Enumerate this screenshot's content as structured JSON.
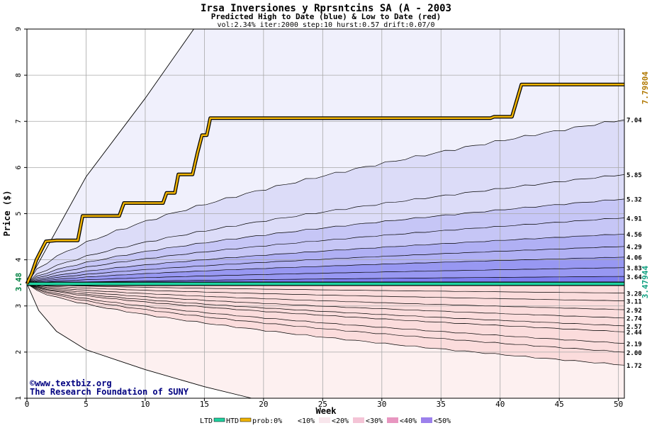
{
  "header": {
    "title": "Irsa Inversiones y Rprsntcins SA (A - 2003",
    "subtitle": "Predicted High to Date (blue) &  Low to Date (red)",
    "params": "vol:2.34% iter:2000 step:10 hurst:0.57 drift:0.07/0"
  },
  "watermark": {
    "line1": "©www.textbiz.org",
    "line2": "The Research Foundation of SUNY"
  },
  "legend": {
    "ltd": "LTD",
    "htd": "HTD",
    "prob": "prob:0%",
    "b10": "<10%",
    "b20": "<20%",
    "b30": "<30%",
    "b40": "<40%",
    "b50": "<50%"
  },
  "colors": {
    "ltd": "#1fd2a0",
    "htd": "#f0b400",
    "blue_bands": [
      "#f0f0fc",
      "#dcdcf8",
      "#c6c6f6",
      "#b0b0f4",
      "#9898f2",
      "#7e7ef0"
    ],
    "red_bands": [
      "#fdf0f0",
      "#fbdcdc",
      "#f9c6c6",
      "#f7aeae",
      "#f59696",
      "#f37e7e"
    ],
    "right_label_high": "#b07800",
    "right_label_low": "#10a080",
    "start_label": "#008040"
  },
  "chart_data": {
    "type": "area",
    "title": "Irsa Inversiones y Rprsntcins SA (A - 2003",
    "xlabel": "Week",
    "ylabel": "Price ($)",
    "xlim": [
      0,
      50.5
    ],
    "ylim": [
      1,
      9
    ],
    "x_ticks": [
      0,
      5,
      10,
      15,
      20,
      25,
      30,
      35,
      40,
      45,
      50
    ],
    "y_ticks": [
      1,
      2,
      3,
      4,
      5,
      6,
      7,
      8,
      9
    ],
    "grid": true,
    "start_price": 3.48,
    "start_label": "3.48",
    "htd_label": "7.79804",
    "ltd_label": "3.47944",
    "ltd_value": 3.479,
    "band_end_labels": [
      "7.04",
      "5.85",
      "5.32",
      "4.91",
      "4.56",
      "4.29",
      "4.06",
      "3.83",
      "3.64",
      "3.28",
      "3.11",
      "2.92",
      "2.74",
      "2.57",
      "2.44",
      "2.19",
      "2.00",
      "1.72"
    ],
    "upper_quantiles": [
      {
        "end": 7.04,
        "label": "7.04"
      },
      {
        "end": 5.85,
        "label": "5.85"
      },
      {
        "end": 5.32,
        "label": "5.32"
      },
      {
        "end": 4.91,
        "label": "4.91"
      },
      {
        "end": 4.56,
        "label": "4.56"
      },
      {
        "end": 4.29,
        "label": "4.29"
      },
      {
        "end": 4.06,
        "label": "4.06"
      },
      {
        "end": 3.83,
        "label": "3.83"
      },
      {
        "end": 3.64,
        "label": "3.64"
      }
    ],
    "lower_quantiles": [
      {
        "end": 3.28,
        "label": "3.28"
      },
      {
        "end": 3.11,
        "label": "3.11"
      },
      {
        "end": 2.92,
        "label": "2.92"
      },
      {
        "end": 2.74,
        "label": "2.74"
      },
      {
        "end": 2.57,
        "label": "2.57"
      },
      {
        "end": 2.44,
        "label": "2.44"
      },
      {
        "end": 2.19,
        "label": "2.19"
      },
      {
        "end": 2.0,
        "label": "2.00"
      },
      {
        "end": 1.72,
        "label": "1.72"
      }
    ],
    "envelope_upper": [
      [
        0,
        3.48
      ],
      [
        5,
        5.8
      ],
      [
        10,
        7.5
      ],
      [
        14.1,
        9.0
      ]
    ],
    "envelope_lower": [
      [
        0,
        3.48
      ],
      [
        1,
        2.9
      ],
      [
        2.5,
        2.45
      ],
      [
        5,
        2.05
      ],
      [
        10,
        1.62
      ],
      [
        15,
        1.25
      ],
      [
        19,
        1.0
      ]
    ],
    "htd_path": [
      [
        0,
        3.48
      ],
      [
        0.4,
        3.7
      ],
      [
        0.8,
        4.0
      ],
      [
        1.2,
        4.2
      ],
      [
        1.6,
        4.4
      ],
      [
        2.5,
        4.42
      ],
      [
        4.3,
        4.42
      ],
      [
        4.7,
        4.95
      ],
      [
        7.8,
        4.95
      ],
      [
        8.2,
        5.23
      ],
      [
        11.5,
        5.23
      ],
      [
        11.8,
        5.45
      ],
      [
        12.5,
        5.45
      ],
      [
        12.8,
        5.85
      ],
      [
        14.0,
        5.85
      ],
      [
        14.4,
        6.3
      ],
      [
        14.8,
        6.7
      ],
      [
        15.2,
        6.7
      ],
      [
        15.5,
        7.07
      ],
      [
        39.2,
        7.07
      ],
      [
        39.5,
        7.1
      ],
      [
        41.0,
        7.1
      ],
      [
        41.8,
        7.8
      ],
      [
        50.5,
        7.8
      ]
    ]
  }
}
